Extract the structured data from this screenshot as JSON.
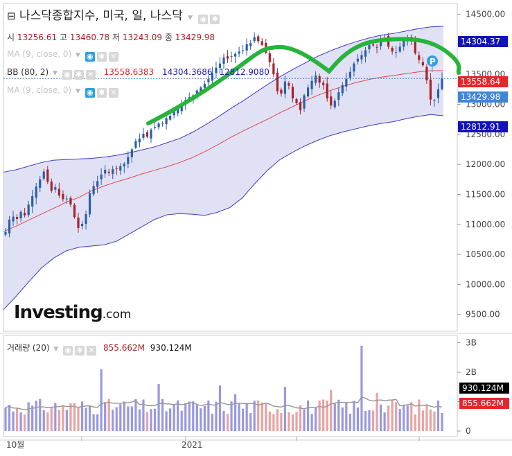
{
  "title": "나스닥종합지수, 미국, 일, 나스닥",
  "ohlc": {
    "open_label": "시",
    "open": "13256.61",
    "high_label": "고",
    "high": "13460.78",
    "low_label": "저",
    "low": "13243.09",
    "close_label": "종",
    "close": "13429.98"
  },
  "indicators": {
    "ma1": "MA (9, close, 0)",
    "bb": "BB (80, 2)",
    "bb_mid": "13558.6383",
    "bb_upper": "14304.3686",
    "bb_lower": "12812.9080",
    "ma2": "MA (9, close, 0)"
  },
  "price_badges": {
    "upper": "14304.37",
    "mid": "13558.64",
    "last": "13429.98",
    "lower": "12812.91"
  },
  "volume": {
    "label": "거래량 (20)",
    "value": "855.662M",
    "ma_value": "930.124M",
    "badge_ma": "930.124M",
    "badge_value": "855.662M",
    "axis_ticks": [
      "3B",
      "2B",
      "1B",
      "0"
    ]
  },
  "x_axis_labels": [
    "10월",
    "2021"
  ],
  "logo": {
    "brand": "Investing",
    "suffix": ".com"
  },
  "marker_label": "P",
  "colors": {
    "up": "#2b5fa8",
    "down": "#a8222a",
    "band_fill": "#dcdcf3",
    "band_line": "#3a3ac6",
    "mid_line": "#e0474a",
    "annotation": "#28b43c",
    "badge_blue": "#1212b8",
    "badge_red": "#e8242a",
    "badge_last": "#3f86d4",
    "badge_black": "#000000"
  },
  "chart_data": {
    "type": "candlestick",
    "price_axis": {
      "ticks": [
        9500,
        10000,
        10500,
        11000,
        11500,
        12000,
        12500,
        13000,
        13500,
        14000,
        14500
      ],
      "range": [
        9220,
        14680
      ]
    },
    "candles_close": [
      10870,
      11080,
      11130,
      11090,
      11210,
      11150,
      11330,
      11470,
      11630,
      11750,
      11880,
      11710,
      11560,
      11620,
      11480,
      11420,
      11430,
      11330,
      11120,
      10940,
      11010,
      11170,
      11520,
      11640,
      11720,
      11830,
      11910,
      11860,
      11920,
      11930,
      11970,
      12010,
      12120,
      12250,
      12390,
      12430,
      12510,
      12460,
      12580,
      12620,
      12680,
      12690,
      12770,
      12810,
      12880,
      12920,
      12990,
      13070,
      13120,
      13150,
      13230,
      13280,
      13340,
      13420,
      13520,
      13610,
      13680,
      13780,
      13760,
      13800,
      13840,
      13880,
      13900,
      14000,
      14020,
      14120,
      14050,
      13990,
      13860,
      13700,
      13500,
      13220,
      13180,
      13380,
      13310,
      13100,
      13020,
      12900,
      13150,
      13280,
      13390,
      13480,
      13360,
      13320,
      13100,
      12980,
      13060,
      13200,
      13320,
      13420,
      13540,
      13680,
      13760,
      13820,
      13900,
      13990,
      13980,
      13950,
      14050,
      14110,
      13960,
      13880,
      13870,
      13960,
      14060,
      14120,
      14060,
      13850,
      13740,
      13650,
      13400,
      13080,
      13070,
      13250,
      13430
    ],
    "bb_upper": [
      11870,
      11910,
      11970,
      12030,
      12070,
      12080,
      12090,
      12100,
      12120,
      12150,
      12190,
      12240,
      12290,
      12360,
      12430,
      12530,
      12650,
      12780,
      12920,
      13050,
      13190,
      13330,
      13460,
      13580,
      13690,
      13800,
      13890,
      13970,
      14040,
      14100,
      14150,
      14180,
      14220,
      14260,
      14290,
      14300
    ],
    "bb_middle": [
      10880,
      10970,
      11070,
      11170,
      11270,
      11370,
      11450,
      11560,
      11640,
      11710,
      11770,
      11840,
      11900,
      11960,
      12030,
      12110,
      12210,
      12320,
      12440,
      12550,
      12650,
      12750,
      12860,
      12960,
      13060,
      13150,
      13230,
      13300,
      13360,
      13410,
      13450,
      13480,
      13510,
      13540,
      13560,
      13560
    ],
    "bb_lower": [
      9580,
      9800,
      10040,
      10270,
      10440,
      10560,
      10620,
      10640,
      10660,
      10720,
      10840,
      10960,
      11080,
      11160,
      11180,
      11170,
      11150,
      11200,
      11280,
      11440,
      11680,
      11900,
      12080,
      12200,
      12310,
      12400,
      12480,
      12540,
      12590,
      12640,
      12680,
      12710,
      12760,
      12800,
      12830,
      12810
    ],
    "volume_axis": {
      "ticks": [
        "3B",
        "2B",
        "1B",
        "0"
      ],
      "max_billion": 3.25
    },
    "last": {
      "open": 13256.61,
      "high": 13460.78,
      "low": 13243.09,
      "close": 13429.98
    }
  }
}
